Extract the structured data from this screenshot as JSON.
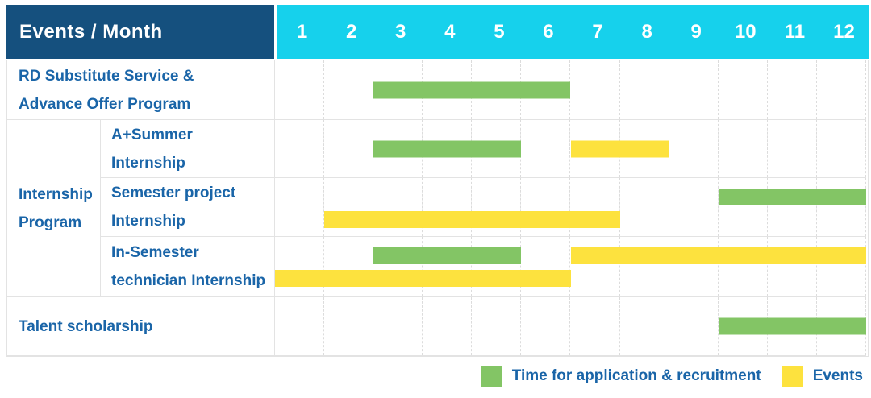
{
  "palette": {
    "header_bg": "#15507E",
    "months_bg": "#16D1EC",
    "green": "#83C565",
    "yellow": "#FDE23E",
    "label_text": "#1A65A8",
    "grid_line": "#E3E3E3"
  },
  "header": {
    "label": "Events / Month",
    "months": [
      "1",
      "2",
      "3",
      "4",
      "5",
      "6",
      "7",
      "8",
      "9",
      "10",
      "11",
      "12"
    ]
  },
  "group": {
    "label": "Internship Program",
    "label_lines": [
      "Internship",
      "Program"
    ]
  },
  "rows": [
    {
      "label": "RD Substitute Service & Advance Offer Program",
      "label_lines": [
        "RD Substitute Service &",
        "Advance Offer Program"
      ],
      "bars": [
        {
          "color": "green",
          "start": 3,
          "end": 6,
          "level": "center"
        }
      ]
    },
    {
      "label": "A+Summer Internship",
      "label_lines": [
        "A+Summer",
        "Internship"
      ],
      "bars": [
        {
          "color": "green",
          "start": 3,
          "end": 5,
          "level": "center"
        },
        {
          "color": "yellow",
          "start": 7,
          "end": 8,
          "level": "center"
        }
      ]
    },
    {
      "label": "Semester project Internship",
      "label_lines": [
        "Semester project",
        "Internship"
      ],
      "bars": [
        {
          "color": "green",
          "start": 10,
          "end": 12,
          "level": "upper"
        },
        {
          "color": "yellow",
          "start": 2,
          "end": 7,
          "level": "lower"
        }
      ]
    },
    {
      "label": "In-Semester technician Internship",
      "label_lines": [
        "In-Semester",
        "technician Internship"
      ],
      "bars": [
        {
          "color": "green",
          "start": 3,
          "end": 5,
          "level": "upper"
        },
        {
          "color": "yellow",
          "start": 7,
          "end": 12,
          "level": "upper"
        },
        {
          "color": "yellow",
          "start": 1,
          "end": 6,
          "level": "lower"
        }
      ]
    },
    {
      "label": "Talent scholarship",
      "label_lines": [
        "Talent scholarship",
        ""
      ],
      "bars": [
        {
          "color": "green",
          "start": 10,
          "end": 12,
          "level": "center"
        }
      ]
    }
  ],
  "legend": [
    {
      "label": "Time for application & recruitment",
      "swatch": "green"
    },
    {
      "label": "Events",
      "swatch": "yellow"
    }
  ],
  "chart_data": {
    "type": "bar",
    "subtype": "gantt",
    "title": "Events / Month",
    "xlabel": "Month",
    "x_ticks": [
      1,
      2,
      3,
      4,
      5,
      6,
      7,
      8,
      9,
      10,
      11,
      12
    ],
    "xlim": [
      1,
      12
    ],
    "grid": true,
    "legend_position": "bottom-right",
    "series_kinds": [
      {
        "name": "Time for application & recruitment",
        "color": "#83C565"
      },
      {
        "name": "Events",
        "color": "#FDE23E"
      }
    ],
    "tasks": [
      {
        "category": "RD Substitute Service & Advance Offer Program",
        "group": null,
        "spans": [
          {
            "kind": "Time for application & recruitment",
            "start_month": 3,
            "end_month": 6
          }
        ]
      },
      {
        "category": "A+Summer Internship",
        "group": "Internship Program",
        "spans": [
          {
            "kind": "Time for application & recruitment",
            "start_month": 3,
            "end_month": 5
          },
          {
            "kind": "Events",
            "start_month": 7,
            "end_month": 8
          }
        ]
      },
      {
        "category": "Semester project Internship",
        "group": "Internship Program",
        "spans": [
          {
            "kind": "Time for application & recruitment",
            "start_month": 10,
            "end_month": 12
          },
          {
            "kind": "Events",
            "start_month": 2,
            "end_month": 7
          }
        ]
      },
      {
        "category": "In-Semester technician Internship",
        "group": "Internship Program",
        "spans": [
          {
            "kind": "Time for application & recruitment",
            "start_month": 3,
            "end_month": 5
          },
          {
            "kind": "Events",
            "start_month": 1,
            "end_month": 6
          },
          {
            "kind": "Events",
            "start_month": 7,
            "end_month": 12
          }
        ]
      },
      {
        "category": "Talent scholarship",
        "group": null,
        "spans": [
          {
            "kind": "Time for application & recruitment",
            "start_month": 10,
            "end_month": 12
          }
        ]
      }
    ]
  }
}
